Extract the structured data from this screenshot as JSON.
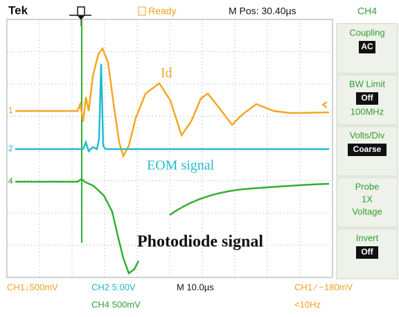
{
  "top_bar": {
    "brand": "Tek",
    "status": "Ready",
    "position": "M Pos: 30.40µs",
    "channel": "CH4"
  },
  "menu": [
    {
      "label": "Coupling",
      "value": "AC"
    },
    {
      "label": "BW Limit",
      "value": "Off",
      "extra": "100MHz"
    },
    {
      "label": "Volts/Div",
      "value": "Coarse"
    },
    {
      "label": "Probe",
      "extra": "1X",
      "extra2": "Voltage"
    },
    {
      "label": "Invert",
      "value": "Off"
    }
  ],
  "channel_markers": [
    "1",
    "2",
    "4"
  ],
  "annotations": {
    "id": "Id",
    "eom": "EOM signal",
    "photodiode": "Photodiode signal"
  },
  "bottom_bar": {
    "ch1": "CH1↓500mV",
    "ch2": "CH2  5.00V",
    "ch4": "CH4  500mV",
    "timebase": "M 10.0µs",
    "trigger": "CH1 ∕ −180mV",
    "frequency": "<10Hz"
  }
}
